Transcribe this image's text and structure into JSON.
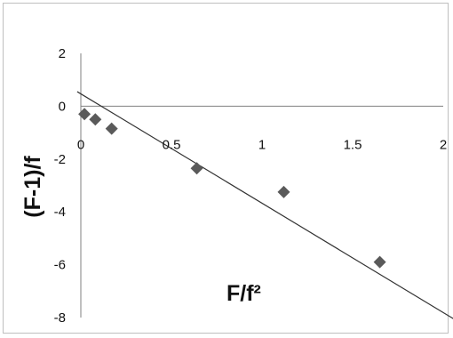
{
  "chart_data": {
    "type": "scatter",
    "xlabel": "F/f²",
    "ylabel": "(F-1)/f",
    "xlim": [
      0,
      2
    ],
    "ylim": [
      -8,
      2
    ],
    "x_ticks": [
      "0",
      "0.5",
      "1",
      "1.5",
      "2"
    ],
    "y_ticks": [
      "2",
      "0",
      "-2",
      "-4",
      "-6",
      "-8"
    ],
    "grid": false,
    "legend": "none",
    "marker": "diamond",
    "marker_color": "#5a5a5a",
    "line_color": "#333333",
    "series": [
      {
        "x": [
          0.02,
          0.08,
          0.17,
          0.64,
          1.12,
          1.65
        ],
        "y": [
          -0.3,
          -0.5,
          -0.85,
          -2.35,
          -3.25,
          -5.9
        ]
      }
    ],
    "trendline": {
      "type": "linear",
      "x": [
        -0.02,
        2.07
      ],
      "y": [
        0.55,
        -8.1
      ]
    }
  }
}
